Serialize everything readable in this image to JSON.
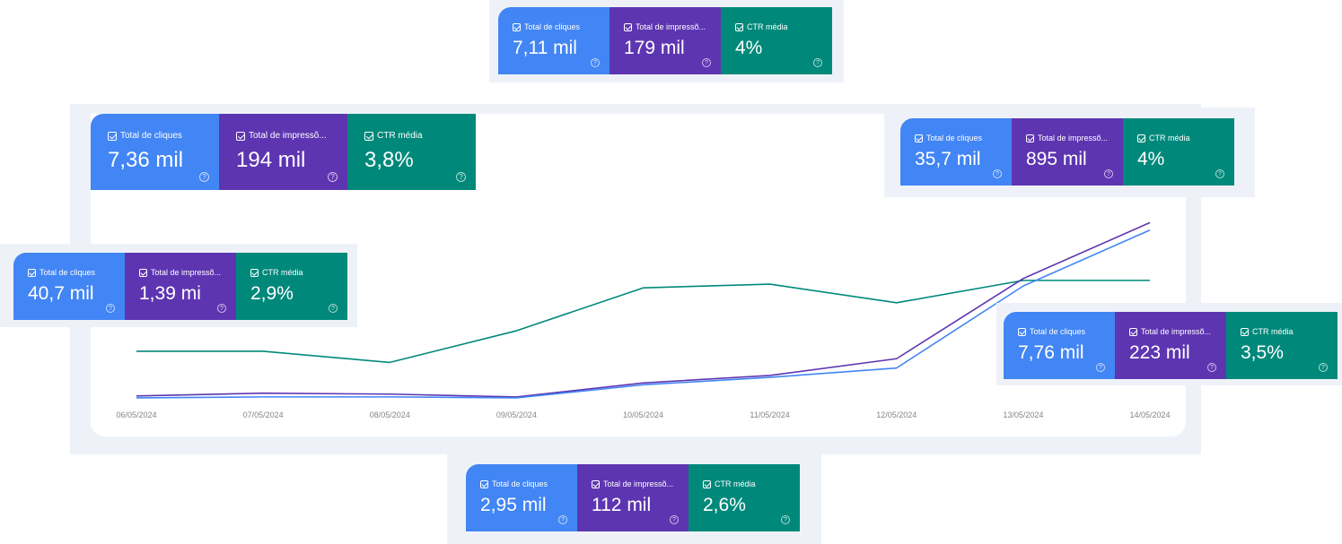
{
  "colors": {
    "clicks": "#4285f4",
    "impressions": "#5e35b1",
    "ctr": "#00897b",
    "panel": "#eef2f8",
    "axis_text": "#80868b"
  },
  "labels": {
    "clicks": "Total de cliques",
    "impressions": "Total de impressõ...",
    "ctr": "CTR média",
    "check_icon": "checkbox-checked-icon",
    "help_icon": "help-circle-icon",
    "help_glyph": "?"
  },
  "cards": {
    "main": {
      "clicks": "7,36 mil",
      "impressions": "194 mil",
      "ctr": "3,8%"
    },
    "top": {
      "clicks": "7,11 mil",
      "impressions": "179 mil",
      "ctr": "4%"
    },
    "right": {
      "clicks": "35,7 mil",
      "impressions": "895 mil",
      "ctr": "4%"
    },
    "left": {
      "clicks": "40,7 mil",
      "impressions": "1,39 mi",
      "ctr": "2,9%"
    },
    "right_bottom": {
      "clicks": "7,76 mil",
      "impressions": "223 mil",
      "ctr": "3,5%"
    },
    "bottom": {
      "clicks": "2,95 mil",
      "impressions": "112 mil",
      "ctr": "2,6%"
    }
  },
  "chart_data": {
    "type": "line",
    "title": "",
    "xlabel": "",
    "ylabel": "",
    "grid": false,
    "legend": "none",
    "categories": [
      "06/05/2024",
      "07/05/2024",
      "08/05/2024",
      "09/05/2024",
      "10/05/2024",
      "11/05/2024",
      "12/05/2024",
      "13/05/2024",
      "14/05/2024"
    ],
    "ylim": [
      0,
      100
    ],
    "series": [
      {
        "name": "CTR média",
        "color": "#00897b",
        "values": [
          26,
          26,
          20,
          37,
          60,
          62,
          52,
          64,
          64
        ]
      },
      {
        "name": "Total de impressões",
        "color": "#5e35b1",
        "values": [
          2,
          3.5,
          3,
          1.5,
          9,
          13,
          22,
          65,
          95
        ]
      },
      {
        "name": "Total de cliques",
        "color": "#4285f4",
        "values": [
          1,
          1.5,
          1.5,
          1,
          8,
          12,
          17,
          61,
          91
        ]
      }
    ]
  }
}
